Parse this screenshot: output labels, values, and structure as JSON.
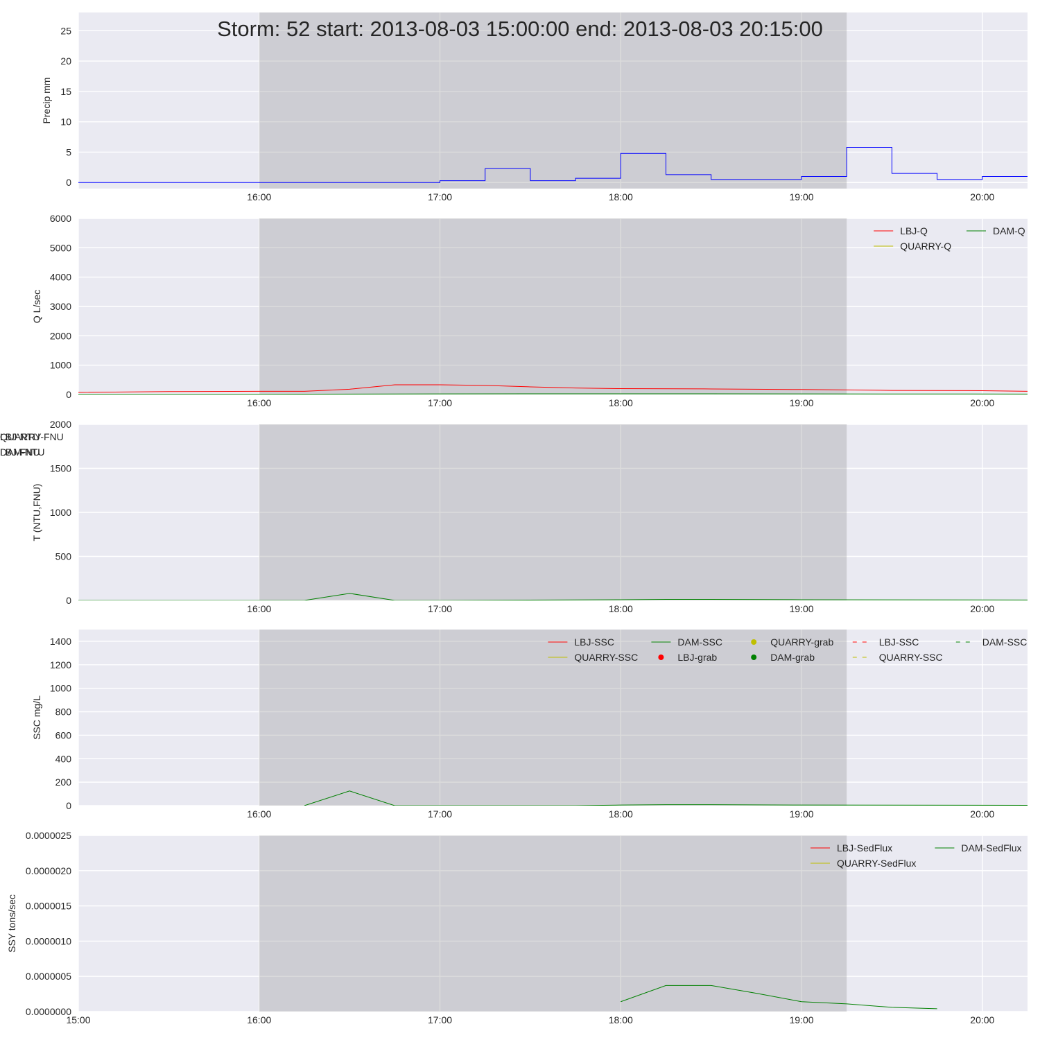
{
  "chart_data": {
    "type": "line",
    "title": "Storm: 52 start: 2013-08-03 15:00:00 end: 2013-08-03 20:15:00",
    "storm_window": {
      "start": "2013-08-03 16:00",
      "end": "2013-08-03 19:15"
    },
    "x_range": [
      "2013-08-03 15:00",
      "2013-08-03 20:15"
    ],
    "panels": [
      {
        "id": "precip",
        "ylabel": "Precip mm",
        "ylim": [
          -1,
          28
        ],
        "yticks": [
          0,
          5,
          10,
          15,
          20,
          25
        ],
        "ytick_labels": [
          "0",
          "5",
          "10",
          "15",
          "20",
          "25"
        ],
        "xtick_labels": [
          "",
          "16:00",
          "17:00",
          "18:00",
          "19:00",
          "20:00"
        ],
        "legend_columns": 0,
        "series": [
          {
            "name": "Precip",
            "color": "#0000ff",
            "style": "step",
            "x": [
              "15:00",
              "15:15",
              "15:30",
              "15:45",
              "16:00",
              "16:15",
              "16:30",
              "16:45",
              "17:00",
              "17:15",
              "17:30",
              "17:45",
              "18:00",
              "18:15",
              "18:30",
              "18:45",
              "19:00",
              "19:15",
              "19:30",
              "19:45",
              "20:00",
              "20:15"
            ],
            "y": [
              0,
              0,
              0,
              0,
              0,
              0,
              0,
              0,
              0.3,
              2.3,
              0.3,
              0.7,
              4.8,
              1.3,
              0.5,
              0.5,
              1.0,
              5.8,
              1.5,
              0.5,
              1.0,
              1.0
            ]
          }
        ]
      },
      {
        "id": "discharge",
        "ylabel": "Q L/sec",
        "ylim": [
          0,
          6000
        ],
        "yticks": [
          0,
          1000,
          2000,
          3000,
          4000,
          5000,
          6000
        ],
        "ytick_labels": [
          "0",
          "1000",
          "2000",
          "3000",
          "4000",
          "5000",
          "6000"
        ],
        "xtick_labels": [
          "",
          "16:00",
          "17:00",
          "18:00",
          "19:00",
          "20:00"
        ],
        "legend_columns": 2,
        "series": [
          {
            "name": "LBJ-Q",
            "color": "#ff0000",
            "style": "line",
            "x": [
              "15:00",
              "15:30",
              "16:00",
              "16:15",
              "16:30",
              "16:45",
              "17:00",
              "17:15",
              "17:30",
              "17:45",
              "18:00",
              "18:30",
              "19:00",
              "19:30",
              "20:00",
              "20:15"
            ],
            "y": [
              70,
              100,
              110,
              110,
              180,
              330,
              330,
              310,
              260,
              220,
              200,
              190,
              170,
              140,
              130,
              110
            ]
          },
          {
            "name": "QUARRY-Q",
            "color": "#bfbf00",
            "style": "line",
            "x": [],
            "y": []
          },
          {
            "name": "DAM-Q",
            "color": "#008000",
            "style": "line",
            "x": [
              "15:00",
              "16:00",
              "17:00",
              "18:00",
              "19:00",
              "20:15"
            ],
            "y": [
              10,
              10,
              20,
              25,
              20,
              15
            ]
          }
        ]
      },
      {
        "id": "turbidity",
        "ylabel": "T (NTU,FNU)",
        "ylim": [
          0,
          2000
        ],
        "yticks": [
          0,
          500,
          1000,
          1500,
          2000
        ],
        "ytick_labels": [
          "0",
          "500",
          "1000",
          "1500",
          "2000"
        ],
        "xtick_labels": [
          "",
          "16:00",
          "17:00",
          "18:00",
          "19:00",
          "20:00"
        ],
        "legend_columns": 3,
        "series": [
          {
            "name": "LBJ-NTU",
            "color": "#ff0000",
            "style": "line",
            "x": [],
            "y": []
          },
          {
            "name": "LBJ-FNU",
            "color": "#bfbf00",
            "style": "line",
            "x": [],
            "y": []
          },
          {
            "name": "QUARRY-FNU",
            "color": "#bfbf00",
            "style": "line",
            "x": [],
            "y": []
          },
          {
            "name": "DAM-NTU",
            "color": "#008000",
            "style": "line",
            "x": [
              "15:00",
              "16:00",
              "16:15",
              "16:30",
              "16:45",
              "17:00",
              "18:00",
              "18:15",
              "18:30",
              "19:00",
              "20:15"
            ],
            "y": [
              0,
              0,
              0,
              80,
              0,
              0,
              8,
              12,
              12,
              8,
              5
            ]
          }
        ]
      },
      {
        "id": "ssc",
        "ylabel": "SSC mg/L",
        "ylim": [
          0,
          1500
        ],
        "yticks": [
          0,
          200,
          400,
          600,
          800,
          1000,
          1200,
          1400
        ],
        "ytick_labels": [
          "0",
          "200",
          "400",
          "600",
          "800",
          "1000",
          "1200",
          "1400"
        ],
        "xtick_labels": [
          "",
          "16:00",
          "17:00",
          "18:00",
          "19:00",
          "20:00"
        ],
        "legend_columns": 5,
        "series": [
          {
            "name": "LBJ-SSC",
            "color": "#ff0000",
            "style": "line",
            "x": [],
            "y": []
          },
          {
            "name": "QUARRY-SSC",
            "color": "#bfbf00",
            "style": "line",
            "x": [],
            "y": []
          },
          {
            "name": "DAM-SSC",
            "color": "#008000",
            "style": "line",
            "x": [
              "16:15",
              "16:30",
              "16:45",
              "17:00",
              "17:45",
              "18:00",
              "18:15",
              "18:30",
              "19:00",
              "20:15"
            ],
            "y": [
              0,
              125,
              0,
              0,
              0,
              5,
              8,
              8,
              5,
              3
            ]
          },
          {
            "name": "LBJ-grab",
            "color": "#ff0000",
            "style": "marker",
            "x": [],
            "y": []
          },
          {
            "name": "QUARRY-grab",
            "color": "#bfbf00",
            "style": "marker",
            "x": [],
            "y": []
          },
          {
            "name": "DAM-grab",
            "color": "#008000",
            "style": "marker",
            "x": [],
            "y": []
          },
          {
            "name": "LBJ-SSC",
            "color": "#ff0000",
            "style": "dashed",
            "x": [],
            "y": []
          },
          {
            "name": "QUARRY-SSC",
            "color": "#bfbf00",
            "style": "dashed",
            "x": [],
            "y": []
          },
          {
            "name": "DAM-SSC",
            "color": "#008000",
            "style": "dashed",
            "x": [],
            "y": []
          }
        ]
      },
      {
        "id": "sedflux",
        "ylabel": "SSY tons/sec",
        "ylim": [
          0,
          2.5e-06
        ],
        "yticks": [
          0,
          5e-07,
          1e-06,
          1.5e-06,
          2e-06,
          2.5e-06
        ],
        "ytick_labels": [
          "0.0000000",
          "0.0000005",
          "0.0000010",
          "0.0000015",
          "0.0000020",
          "0.0000025"
        ],
        "xtick_labels": [
          "15:00",
          "16:00",
          "17:00",
          "18:00",
          "19:00",
          "20:00"
        ],
        "legend_columns": 2,
        "series": [
          {
            "name": "LBJ-SedFlux",
            "color": "#ff0000",
            "style": "line",
            "x": [],
            "y": []
          },
          {
            "name": "QUARRY-SedFlux",
            "color": "#bfbf00",
            "style": "line",
            "x": [],
            "y": []
          },
          {
            "name": "DAM-SedFlux",
            "color": "#008000",
            "style": "line",
            "x": [
              "18:00",
              "18:15",
              "18:30",
              "18:45",
              "19:00",
              "19:15",
              "19:30",
              "19:45"
            ],
            "y": [
              1.4e-07,
              3.7e-07,
              3.7e-07,
              2.6e-07,
              1.4e-07,
              1.1e-07,
              6e-08,
              4e-08
            ]
          }
        ]
      }
    ]
  }
}
